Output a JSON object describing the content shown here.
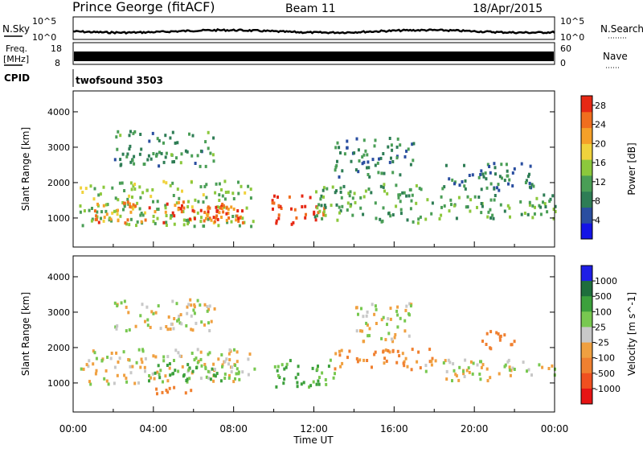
{
  "header": {
    "station": "Prince George (fitACF)",
    "beam": "Beam 11",
    "date": "18/Apr/2015"
  },
  "noise_panel": {
    "left_label": "N.Sky",
    "right_label": "N.Search",
    "left_ticks": [
      "10^5",
      "10^0"
    ],
    "right_ticks": [
      "10^5",
      "10^0"
    ]
  },
  "freq_panel": {
    "left_label_1": "Freq.",
    "left_label_2": "[MHz]",
    "right_label": "Nave",
    "left_ticks": [
      "18",
      "8"
    ],
    "right_ticks": [
      "60",
      "0"
    ]
  },
  "cpid": {
    "label": "CPID",
    "value": "twofsound 3503"
  },
  "colors": {
    "power_scale": [
      "#1414e6",
      "#2a4ea0",
      "#2e7d55",
      "#4a9e56",
      "#8cc83c",
      "#f0d23c",
      "#f5a028",
      "#f06e1e",
      "#e62814"
    ],
    "velocity_scale": [
      "#1e1ee6",
      "#1e6e3c",
      "#3ca03c",
      "#78c850",
      "#c8c8c8",
      "#f0a040",
      "#f08030",
      "#f05020",
      "#e61414"
    ]
  },
  "chart_data": [
    {
      "type": "heatmap",
      "title": "",
      "ylabel": "Slant Range [km]",
      "xlabel": "Time UT",
      "xlim": [
        "00:00",
        "24:00"
      ],
      "ylim": [
        180,
        4590
      ],
      "x_ticks": [
        "00:00",
        "04:00",
        "08:00",
        "12:00",
        "16:00",
        "20:00",
        "00:00"
      ],
      "y_ticks": [
        1000,
        2000,
        3000,
        4000
      ],
      "colorbar": {
        "label": "Power [dB]",
        "ticks": [
          4,
          8,
          12,
          16,
          20,
          24,
          28
        ],
        "range": [
          0,
          30
        ]
      },
      "regions": [
        {
          "t0": 0.3,
          "t1": 9.0,
          "r0": 800,
          "r1": 2100,
          "level": 14
        },
        {
          "t0": 1.0,
          "t1": 8.5,
          "r0": 900,
          "r1": 1500,
          "level": 24
        },
        {
          "t0": 4.5,
          "t1": 8.5,
          "r0": 1000,
          "r1": 1400,
          "level": 27
        },
        {
          "t0": 2.0,
          "t1": 7.0,
          "r0": 2500,
          "r1": 3500,
          "level": 10
        },
        {
          "t0": 9.8,
          "t1": 12.5,
          "r0": 850,
          "r1": 1700,
          "level": 28
        },
        {
          "t0": 12.0,
          "t1": 17.5,
          "r0": 900,
          "r1": 2000,
          "level": 12
        },
        {
          "t0": 13.0,
          "t1": 17.0,
          "r0": 2200,
          "r1": 3300,
          "level": 9
        },
        {
          "t0": 17.5,
          "t1": 24.0,
          "r0": 1000,
          "r1": 1700,
          "level": 12
        },
        {
          "t0": 18.0,
          "t1": 23.0,
          "r0": 1800,
          "r1": 2600,
          "level": 8
        }
      ]
    },
    {
      "type": "heatmap",
      "title": "",
      "ylabel": "Slant Range [km]",
      "xlabel": "Time UT",
      "xlim": [
        "00:00",
        "24:00"
      ],
      "ylim": [
        180,
        4590
      ],
      "x_ticks": [
        "00:00",
        "04:00",
        "08:00",
        "12:00",
        "16:00",
        "20:00",
        "00:00"
      ],
      "y_ticks": [
        1000,
        2000,
        3000,
        4000
      ],
      "colorbar": {
        "label": "Velocity [m s^-1]",
        "ticks": [
          "1000",
          "500",
          "100",
          "25",
          "-25",
          "-100",
          "-500",
          "-1000"
        ]
      },
      "regions": [
        {
          "t0": 0.3,
          "t1": 9.0,
          "r0": 1000,
          "r1": 2000,
          "level": 0
        },
        {
          "t0": 3.5,
          "t1": 8.0,
          "r0": 1100,
          "r1": 1600,
          "level": 150
        },
        {
          "t0": 4.0,
          "t1": 6.0,
          "r0": 700,
          "r1": 1000,
          "level": -300
        },
        {
          "t0": 2.0,
          "t1": 7.0,
          "r0": 2500,
          "r1": 3400,
          "level": 0
        },
        {
          "t0": 9.8,
          "t1": 13.0,
          "r0": 900,
          "r1": 1700,
          "level": 150
        },
        {
          "t0": 13.0,
          "t1": 18.0,
          "r0": 1400,
          "r1": 2000,
          "level": -150
        },
        {
          "t0": 14.0,
          "t1": 17.0,
          "r0": 2200,
          "r1": 3300,
          "level": 0
        },
        {
          "t0": 17.5,
          "t1": 24.0,
          "r0": 1100,
          "r1": 1700,
          "level": 0
        },
        {
          "t0": 20.0,
          "t1": 22.0,
          "r0": 2000,
          "r1": 2500,
          "level": -400
        }
      ]
    }
  ]
}
